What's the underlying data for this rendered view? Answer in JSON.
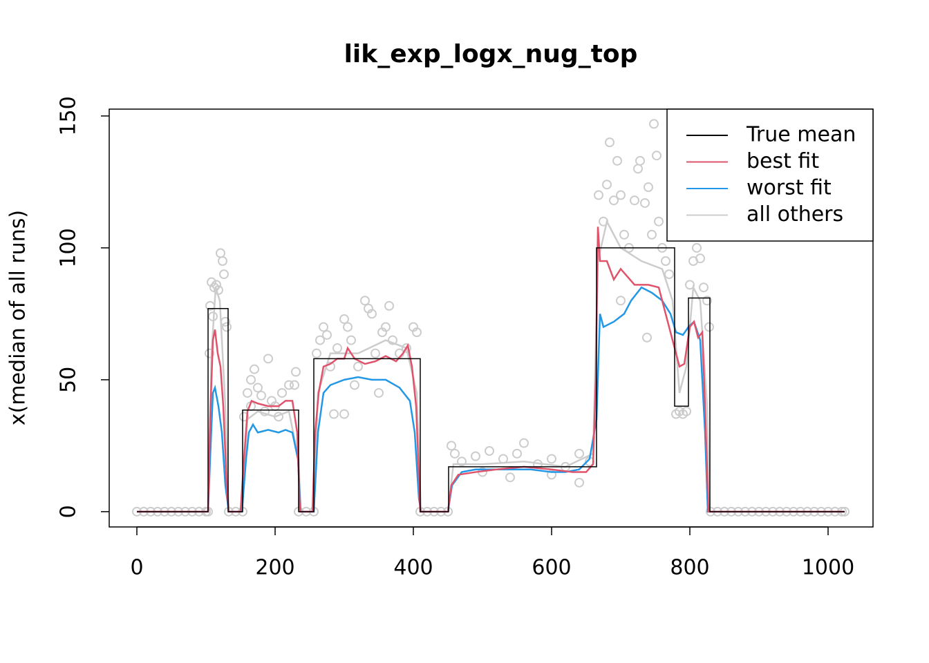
{
  "chart_data": {
    "type": "line",
    "title": "lik_exp_logx_nug_top",
    "y_label": "x(median of all runs)",
    "xlim": [
      -40,
      1065
    ],
    "ylim": [
      -5.8,
      152.6
    ],
    "xticks": [
      0,
      200,
      400,
      600,
      800,
      1000
    ],
    "yticks": [
      0,
      50,
      100,
      150
    ],
    "legend": "topright",
    "series": [
      {
        "name": "True mean",
        "color": "#000000",
        "x": [
          0,
          103,
          103,
          132,
          132,
          153,
          153,
          234,
          234,
          256,
          256,
          410,
          410,
          451,
          451,
          665,
          665,
          778,
          778,
          798,
          798,
          829,
          829,
          1024
        ],
        "values": [
          0,
          0,
          77,
          77,
          0,
          0,
          38.5,
          38.5,
          0,
          0,
          58,
          58,
          0,
          0,
          17,
          17,
          100,
          100,
          40,
          40,
          81,
          81,
          0,
          0
        ]
      },
      {
        "name": "best fit",
        "color": "#df536b",
        "x": [
          0,
          103,
          106,
          110,
          113,
          117,
          121,
          125,
          130,
          133,
          150,
          155,
          160,
          166,
          175,
          190,
          205,
          215,
          225,
          232,
          236,
          254,
          258,
          263,
          270,
          280,
          290,
          300,
          305,
          315,
          330,
          345,
          360,
          375,
          385,
          392,
          398,
          404,
          410,
          450,
          455,
          465,
          490,
          520,
          560,
          600,
          630,
          650,
          660,
          664,
          667,
          670,
          680,
          690,
          700,
          720,
          740,
          755,
          765,
          775,
          785,
          792,
          800,
          806,
          812,
          818,
          822,
          827,
          1024
        ],
        "values": [
          0,
          0,
          35,
          65,
          69,
          60,
          55,
          40,
          10,
          0,
          0,
          20,
          38,
          42,
          41,
          40,
          40,
          42,
          42,
          30,
          0,
          0,
          30,
          45,
          55,
          56,
          58,
          58,
          62,
          58,
          56,
          57,
          59,
          57,
          60,
          63,
          55,
          40,
          0,
          0,
          10,
          14,
          15,
          16,
          17,
          16,
          15,
          15,
          18,
          50,
          108,
          95,
          95,
          88,
          92,
          86,
          86,
          85,
          75,
          65,
          55,
          56,
          70,
          72,
          66,
          68,
          40,
          0,
          0
        ]
      },
      {
        "name": "worst fit",
        "color": "#2297e6",
        "x": [
          0,
          103,
          106,
          110,
          113,
          118,
          123,
          128,
          133,
          152,
          158,
          162,
          168,
          175,
          190,
          205,
          215,
          225,
          233,
          237,
          256,
          262,
          270,
          280,
          300,
          320,
          340,
          360,
          380,
          395,
          402,
          408,
          411,
          450,
          456,
          470,
          490,
          530,
          570,
          600,
          620,
          640,
          655,
          665,
          670,
          675,
          690,
          705,
          715,
          730,
          745,
          760,
          772,
          780,
          790,
          798,
          806,
          815,
          822,
          826,
          1024
        ],
        "values": [
          0,
          0,
          20,
          45,
          47,
          40,
          30,
          10,
          0,
          0,
          20,
          30,
          33,
          30,
          31,
          30,
          31,
          30,
          20,
          0,
          0,
          30,
          45,
          48,
          50,
          51,
          50,
          50,
          47,
          42,
          30,
          5,
          0,
          0,
          10,
          15,
          16,
          16,
          16,
          15,
          15,
          16,
          20,
          35,
          75,
          70,
          72,
          75,
          80,
          85,
          83,
          80,
          75,
          68,
          67,
          70,
          72,
          65,
          30,
          0,
          0
        ]
      },
      {
        "name": "all others",
        "color": "#cccccc",
        "x": [
          0,
          103,
          108,
          114,
          120,
          128,
          133,
          152,
          160,
          175,
          200,
          220,
          234,
          237,
          256,
          262,
          280,
          320,
          360,
          390,
          405,
          411,
          450,
          458,
          500,
          560,
          620,
          660,
          667,
          680,
          700,
          730,
          760,
          775,
          785,
          795,
          805,
          815,
          825,
          829,
          1024
        ],
        "values": [
          0,
          0,
          60,
          85,
          80,
          40,
          0,
          0,
          35,
          38,
          36,
          38,
          20,
          0,
          0,
          45,
          60,
          60,
          65,
          62,
          45,
          0,
          0,
          18,
          18,
          19,
          17,
          22,
          95,
          110,
          100,
          95,
          92,
          80,
          45,
          55,
          85,
          80,
          40,
          0,
          0
        ]
      }
    ],
    "points": {
      "color": "#cccccc",
      "x": [
        106,
        108,
        112,
        115,
        118,
        121,
        124,
        126,
        128,
        130,
        105,
        110,
        155,
        160,
        165,
        170,
        175,
        180,
        190,
        195,
        200,
        210,
        220,
        230,
        228,
        165,
        185,
        205,
        260,
        265,
        270,
        275,
        280,
        285,
        290,
        300,
        305,
        310,
        315,
        320,
        330,
        335,
        340,
        345,
        350,
        355,
        360,
        365,
        370,
        380,
        390,
        400,
        405,
        300,
        455,
        460,
        470,
        490,
        510,
        530,
        550,
        560,
        580,
        600,
        620,
        640,
        655,
        500,
        540,
        600,
        640,
        668,
        675,
        680,
        684,
        690,
        695,
        700,
        705,
        712,
        720,
        725,
        728,
        735,
        740,
        745,
        748,
        752,
        755,
        760,
        765,
        770,
        738,
        700,
        780,
        785,
        790,
        795,
        800,
        805,
        810,
        815,
        820,
        825,
        828,
        0,
        10,
        20,
        30,
        40,
        50,
        60,
        70,
        80,
        90,
        100,
        103,
        133,
        143,
        153,
        234,
        245,
        256,
        410,
        420,
        430,
        440,
        450,
        830,
        840,
        850,
        860,
        870,
        880,
        890,
        900,
        910,
        920,
        930,
        940,
        950,
        960,
        970,
        980,
        990,
        1000,
        1010,
        1020,
        1024
      ],
      "values": [
        78,
        87,
        85,
        86,
        84,
        98,
        95,
        90,
        72,
        70,
        60,
        74,
        36,
        45,
        50,
        54,
        47,
        44,
        58,
        42,
        40,
        45,
        48,
        53,
        48,
        40,
        38,
        36,
        60,
        65,
        70,
        67,
        55,
        37,
        62,
        73,
        70,
        65,
        48,
        55,
        80,
        77,
        75,
        60,
        45,
        68,
        70,
        78,
        65,
        60,
        62,
        70,
        68,
        37,
        25,
        22,
        19,
        21,
        23,
        20,
        22,
        26,
        18,
        20,
        17,
        22,
        19,
        15,
        13,
        14,
        11,
        120,
        110,
        124,
        140,
        118,
        133,
        120,
        105,
        100,
        118,
        130,
        133,
        117,
        123,
        105,
        147,
        135,
        110,
        100,
        95,
        90,
        66,
        80,
        37,
        38,
        37,
        38,
        86,
        95,
        100,
        96,
        85,
        80,
        70,
        0,
        0,
        0,
        0,
        0,
        0,
        0,
        0,
        0,
        0,
        0,
        0,
        0,
        0,
        0,
        0,
        0,
        0,
        0,
        0,
        0,
        0,
        0,
        0,
        0,
        0,
        0,
        0,
        0,
        0,
        0,
        0,
        0,
        0,
        0,
        0,
        0,
        0,
        0,
        0,
        0,
        0,
        0,
        0
      ]
    }
  }
}
